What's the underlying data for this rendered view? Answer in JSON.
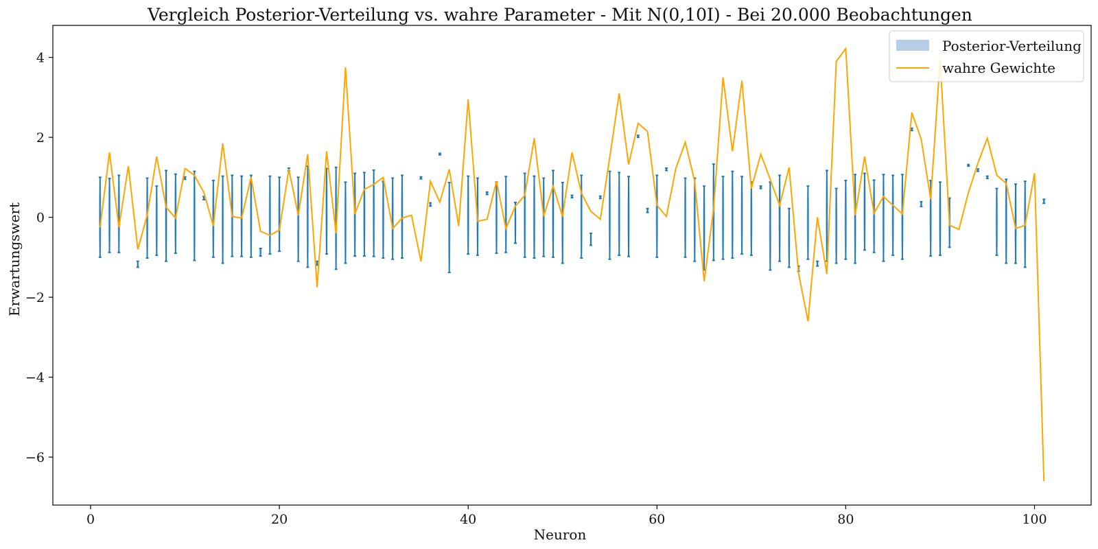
{
  "chart_data": {
    "type": "violin",
    "title": "Vergleich Posterior-Verteilung vs. wahre Parameter - Mit N(0,10I) - Bei 20.000 Beobachtungen",
    "xlabel": "Neuron",
    "ylabel": "Erwartungswert",
    "xlim": [
      -4,
      106
    ],
    "ylim": [
      -7.2,
      4.8
    ],
    "xticks": [
      0,
      20,
      40,
      60,
      80,
      100
    ],
    "yticks": [
      -6,
      -4,
      -2,
      0,
      2,
      4
    ],
    "ytick_labels": [
      "−6",
      "−4",
      "−2",
      "0",
      "2",
      "4"
    ],
    "grid": false,
    "legend": {
      "placement": "top-right",
      "entries": [
        "Posterior-Verteilung",
        "wahre Gewichte"
      ]
    },
    "colors": {
      "posterior_bar": "#1f77b4",
      "posterior_fill": "#b5d0e6",
      "true_line": "#ffa500"
    },
    "true_weights": {
      "name": "wahre Gewichte",
      "x": [
        1,
        2,
        3,
        4,
        5,
        6,
        7,
        8,
        9,
        10,
        11,
        12,
        13,
        14,
        15,
        16,
        17,
        18,
        19,
        20,
        21,
        22,
        23,
        24,
        25,
        26,
        27,
        28,
        29,
        30,
        31,
        32,
        33,
        34,
        35,
        36,
        37,
        38,
        39,
        40,
        41,
        42,
        43,
        44,
        45,
        46,
        47,
        48,
        49,
        50,
        51,
        52,
        53,
        54,
        55,
        56,
        57,
        58,
        59,
        60,
        61,
        62,
        63,
        64,
        65,
        66,
        67,
        68,
        69,
        70,
        71,
        72,
        73,
        74,
        75,
        76,
        77,
        78,
        79,
        80,
        81,
        82,
        83,
        84,
        85,
        86,
        87,
        88,
        89,
        90,
        91,
        92,
        93,
        94,
        95,
        96,
        97,
        98,
        99,
        100,
        101
      ],
      "y": [
        -0.25,
        1.62,
        -0.25,
        1.28,
        -0.8,
        0.05,
        1.52,
        0.25,
        -0.02,
        1.22,
        1.05,
        0.62,
        -0.22,
        1.85,
        0.02,
        -0.02,
        1.0,
        -0.35,
        -0.45,
        -0.32,
        1.2,
        0.05,
        1.58,
        -1.75,
        1.65,
        -0.4,
        3.75,
        0.08,
        0.7,
        0.82,
        1.0,
        -0.28,
        -0.02,
        0.05,
        -1.1,
        0.9,
        0.38,
        1.2,
        -0.22,
        2.95,
        -0.1,
        -0.05,
        0.9,
        -0.28,
        0.28,
        0.55,
        1.98,
        0.03,
        0.78,
        0.02,
        1.62,
        0.6,
        0.15,
        -0.05,
        1.5,
        3.1,
        1.32,
        2.35,
        2.15,
        0.3,
        0.02,
        1.22,
        1.88,
        0.9,
        -1.6,
        0.2,
        3.5,
        1.65,
        3.42,
        0.72,
        1.58,
        0.95,
        0.3,
        1.25,
        -1.4,
        -2.6,
        0.0,
        -1.42,
        3.9,
        4.22,
        0.05,
        1.52,
        0.1,
        0.52,
        0.3,
        0.08,
        2.62,
        1.95,
        0.45,
        3.95,
        -0.2,
        -0.3,
        0.62,
        1.35,
        1.98,
        1.05,
        0.85,
        -0.28,
        -0.2,
        1.1,
        -6.6
      ]
    },
    "posterior": [
      {
        "x": 1,
        "mean": 0,
        "lo": -1.0,
        "hi": 1.0,
        "width": 0.5
      },
      {
        "x": 2,
        "mean": 0,
        "lo": -0.88,
        "hi": 0.97,
        "width": 0.5
      },
      {
        "x": 3,
        "mean": 0,
        "lo": -0.88,
        "hi": 1.05,
        "width": 0.5
      },
      {
        "x": 5,
        "mean": -1.18,
        "lo": -1.25,
        "hi": -1.1,
        "width": 0.12
      },
      {
        "x": 6,
        "mean": 0,
        "lo": -1.02,
        "hi": 0.98,
        "width": 0.5
      },
      {
        "x": 7,
        "mean": 0,
        "lo": -0.95,
        "hi": 0.78,
        "width": 0.5
      },
      {
        "x": 8,
        "mean": 0,
        "lo": -1.1,
        "hi": 1.17,
        "width": 0.5
      },
      {
        "x": 9,
        "mean": 0,
        "lo": -0.9,
        "hi": 1.08,
        "width": 0.5
      },
      {
        "x": 10,
        "mean": 0.98,
        "lo": 0.95,
        "hi": 1.01,
        "width": 0.1
      },
      {
        "x": 11,
        "mean": 0,
        "lo": -1.08,
        "hi": 1.15,
        "width": 0.5
      },
      {
        "x": 12,
        "mean": 0.48,
        "lo": 0.44,
        "hi": 0.52,
        "width": 0.1
      },
      {
        "x": 13,
        "mean": 0,
        "lo": -1.0,
        "hi": 0.92,
        "width": 0.5
      },
      {
        "x": 14,
        "mean": 0,
        "lo": -1.15,
        "hi": 1.03,
        "width": 0.5
      },
      {
        "x": 15,
        "mean": 0,
        "lo": -0.98,
        "hi": 1.05,
        "width": 0.5
      },
      {
        "x": 16,
        "mean": 0,
        "lo": -0.98,
        "hi": 1.03,
        "width": 0.5
      },
      {
        "x": 17,
        "mean": 0,
        "lo": -1.0,
        "hi": 1.05,
        "width": 0.5
      },
      {
        "x": 18,
        "mean": -0.88,
        "lo": -0.97,
        "hi": -0.78,
        "width": 0.12
      },
      {
        "x": 19,
        "mean": 0,
        "lo": -0.92,
        "hi": 1.03,
        "width": 0.5
      },
      {
        "x": 20,
        "mean": 0,
        "lo": -0.85,
        "hi": 1.0,
        "width": 0.5
      },
      {
        "x": 21,
        "mean": 1.2,
        "lo": 1.16,
        "hi": 1.23,
        "width": 0.1
      },
      {
        "x": 22,
        "mean": 0,
        "lo": -1.1,
        "hi": 1.0,
        "width": 0.5
      },
      {
        "x": 23,
        "mean": 0,
        "lo": -1.25,
        "hi": 1.28,
        "width": 0.5
      },
      {
        "x": 24,
        "mean": -1.15,
        "lo": -1.2,
        "hi": -1.1,
        "width": 0.12
      },
      {
        "x": 25,
        "mean": 0,
        "lo": -0.92,
        "hi": 1.22,
        "width": 0.5
      },
      {
        "x": 26,
        "mean": 0,
        "lo": -1.3,
        "hi": 1.25,
        "width": 0.5
      },
      {
        "x": 27,
        "mean": 0,
        "lo": -1.15,
        "hi": 0.88,
        "width": 0.5
      },
      {
        "x": 28,
        "mean": 0,
        "lo": -0.97,
        "hi": 1.1,
        "width": 0.5
      },
      {
        "x": 29,
        "mean": 0,
        "lo": -0.97,
        "hi": 1.12,
        "width": 0.5
      },
      {
        "x": 30,
        "mean": 0,
        "lo": -0.98,
        "hi": 1.18,
        "width": 0.5
      },
      {
        "x": 31,
        "mean": 0,
        "lo": -1.02,
        "hi": 0.9,
        "width": 0.5
      },
      {
        "x": 32,
        "mean": 0,
        "lo": -1.05,
        "hi": 0.98,
        "width": 0.5
      },
      {
        "x": 33,
        "mean": 0,
        "lo": -1.02,
        "hi": 1.05,
        "width": 0.5
      },
      {
        "x": 35,
        "mean": 0.98,
        "lo": 0.96,
        "hi": 1.01,
        "width": 0.1
      },
      {
        "x": 36,
        "mean": 0.32,
        "lo": 0.28,
        "hi": 0.36,
        "width": 0.1
      },
      {
        "x": 37,
        "mean": 1.58,
        "lo": 1.56,
        "hi": 1.6,
        "width": 0.1
      },
      {
        "x": 38,
        "mean": 0,
        "lo": -1.38,
        "hi": 0.87,
        "width": 0.5
      },
      {
        "x": 40,
        "mean": 0,
        "lo": -0.92,
        "hi": 1.03,
        "width": 0.5
      },
      {
        "x": 41,
        "mean": 0,
        "lo": -0.95,
        "hi": 0.98,
        "width": 0.5
      },
      {
        "x": 42,
        "mean": 0.6,
        "lo": 0.57,
        "hi": 0.63,
        "width": 0.1
      },
      {
        "x": 43,
        "mean": 0,
        "lo": -0.9,
        "hi": 0.88,
        "width": 0.5
      },
      {
        "x": 44,
        "mean": 0,
        "lo": -0.88,
        "hi": 1.02,
        "width": 0.5
      },
      {
        "x": 45,
        "mean": 0,
        "lo": -0.65,
        "hi": 0.37,
        "width": 0.45
      },
      {
        "x": 46,
        "mean": 0,
        "lo": -1.0,
        "hi": 1.1,
        "width": 0.5
      },
      {
        "x": 47,
        "mean": 0,
        "lo": -1.02,
        "hi": 1.03,
        "width": 0.5
      },
      {
        "x": 48,
        "mean": 0,
        "lo": -0.98,
        "hi": 0.98,
        "width": 0.5
      },
      {
        "x": 49,
        "mean": 0,
        "lo": -1.0,
        "hi": 1.17,
        "width": 0.5
      },
      {
        "x": 50,
        "mean": 0,
        "lo": -1.15,
        "hi": 0.87,
        "width": 0.5
      },
      {
        "x": 51,
        "mean": 0.52,
        "lo": 0.49,
        "hi": 0.55,
        "width": 0.1
      },
      {
        "x": 52,
        "mean": 0,
        "lo": -1.02,
        "hi": 1.05,
        "width": 0.5
      },
      {
        "x": 53,
        "mean": -0.55,
        "lo": -0.7,
        "hi": -0.4,
        "width": 0.18
      },
      {
        "x": 54,
        "mean": 0.5,
        "lo": 0.47,
        "hi": 0.53,
        "width": 0.1
      },
      {
        "x": 55,
        "mean": 0,
        "lo": -1.05,
        "hi": 1.15,
        "width": 0.5
      },
      {
        "x": 56,
        "mean": 0,
        "lo": -0.95,
        "hi": 1.12,
        "width": 0.5
      },
      {
        "x": 57,
        "mean": 0,
        "lo": -0.98,
        "hi": 1.02,
        "width": 0.5
      },
      {
        "x": 58,
        "mean": 2.02,
        "lo": 2.0,
        "hi": 2.05,
        "width": 0.1
      },
      {
        "x": 59,
        "mean": 0.17,
        "lo": 0.12,
        "hi": 0.22,
        "width": 0.1
      },
      {
        "x": 60,
        "mean": 0,
        "lo": -1.0,
        "hi": 1.05,
        "width": 0.5
      },
      {
        "x": 61,
        "mean": 1.2,
        "lo": 1.17,
        "hi": 1.23,
        "width": 0.1
      },
      {
        "x": 63,
        "mean": 0,
        "lo": -1.0,
        "hi": 0.98,
        "width": 0.5
      },
      {
        "x": 64,
        "mean": 0,
        "lo": -1.1,
        "hi": 0.98,
        "width": 0.5
      },
      {
        "x": 65,
        "mean": 0,
        "lo": -1.32,
        "hi": 0.78,
        "width": 0.5
      },
      {
        "x": 66,
        "mean": 0,
        "lo": -1.08,
        "hi": 1.33,
        "width": 0.5
      },
      {
        "x": 67,
        "mean": 0,
        "lo": -1.05,
        "hi": 1.02,
        "width": 0.5
      },
      {
        "x": 68,
        "mean": 0,
        "lo": -1.02,
        "hi": 1.15,
        "width": 0.5
      },
      {
        "x": 69,
        "mean": 0,
        "lo": -0.92,
        "hi": 1.02,
        "width": 0.5
      },
      {
        "x": 70,
        "mean": 0,
        "lo": -0.95,
        "hi": 0.88,
        "width": 0.5
      },
      {
        "x": 71,
        "mean": 0.75,
        "lo": 0.72,
        "hi": 0.78,
        "width": 0.1
      },
      {
        "x": 72,
        "mean": 0,
        "lo": -1.32,
        "hi": 0.88,
        "width": 0.5
      },
      {
        "x": 73,
        "mean": 0,
        "lo": -1.1,
        "hi": 1.05,
        "width": 0.5
      },
      {
        "x": 74,
        "mean": -0.55,
        "lo": -1.25,
        "hi": 0.22,
        "width": 0.45
      },
      {
        "x": 75,
        "mean": -1.28,
        "lo": -1.35,
        "hi": -1.22,
        "width": 0.12
      },
      {
        "x": 76,
        "mean": 0,
        "lo": -1.05,
        "hi": 0.78,
        "width": 0.5
      },
      {
        "x": 77,
        "mean": -1.15,
        "lo": -1.22,
        "hi": -1.1,
        "width": 0.1
      },
      {
        "x": 78,
        "mean": 0,
        "lo": -1.1,
        "hi": 1.17,
        "width": 0.5
      },
      {
        "x": 79,
        "mean": 0,
        "lo": -1.15,
        "hi": 0.72,
        "width": 0.5
      },
      {
        "x": 80,
        "mean": 0,
        "lo": -1.05,
        "hi": 0.92,
        "width": 0.5
      },
      {
        "x": 81,
        "mean": 0,
        "lo": -1.15,
        "hi": 1.07,
        "width": 0.5
      },
      {
        "x": 82,
        "mean": 0,
        "lo": -0.82,
        "hi": 1.1,
        "width": 0.5
      },
      {
        "x": 83,
        "mean": 0,
        "lo": -0.88,
        "hi": 0.93,
        "width": 0.5
      },
      {
        "x": 84,
        "mean": 0,
        "lo": -1.1,
        "hi": 1.07,
        "width": 0.5
      },
      {
        "x": 85,
        "mean": 0,
        "lo": -0.95,
        "hi": 1.05,
        "width": 0.5
      },
      {
        "x": 86,
        "mean": 0,
        "lo": -1.05,
        "hi": 1.07,
        "width": 0.5
      },
      {
        "x": 87,
        "mean": 2.2,
        "lo": 2.17,
        "hi": 2.23,
        "width": 0.1
      },
      {
        "x": 88,
        "mean": 0.33,
        "lo": 0.27,
        "hi": 0.39,
        "width": 0.1
      },
      {
        "x": 89,
        "mean": 0,
        "lo": -0.97,
        "hi": 0.92,
        "width": 0.5
      },
      {
        "x": 90,
        "mean": 0,
        "lo": -0.95,
        "hi": 0.88,
        "width": 0.5
      },
      {
        "x": 91,
        "mean": 0,
        "lo": -0.75,
        "hi": 0.48,
        "width": 0.45
      },
      {
        "x": 93,
        "mean": 1.3,
        "lo": 1.28,
        "hi": 1.32,
        "width": 0.1
      },
      {
        "x": 94,
        "mean": 1.18,
        "lo": 1.15,
        "hi": 1.21,
        "width": 0.1
      },
      {
        "x": 95,
        "mean": 1.0,
        "lo": 0.97,
        "hi": 1.03,
        "width": 0.1
      },
      {
        "x": 96,
        "mean": 0,
        "lo": -0.95,
        "hi": 0.72,
        "width": 0.5
      },
      {
        "x": 97,
        "mean": 0,
        "lo": -1.15,
        "hi": 0.95,
        "width": 0.5
      },
      {
        "x": 98,
        "mean": 0,
        "lo": -1.15,
        "hi": 0.83,
        "width": 0.5
      },
      {
        "x": 99,
        "mean": 0,
        "lo": -1.25,
        "hi": 0.9,
        "width": 0.5
      },
      {
        "x": 101,
        "mean": 0.4,
        "lo": 0.35,
        "hi": 0.45,
        "width": 0.1
      }
    ]
  }
}
